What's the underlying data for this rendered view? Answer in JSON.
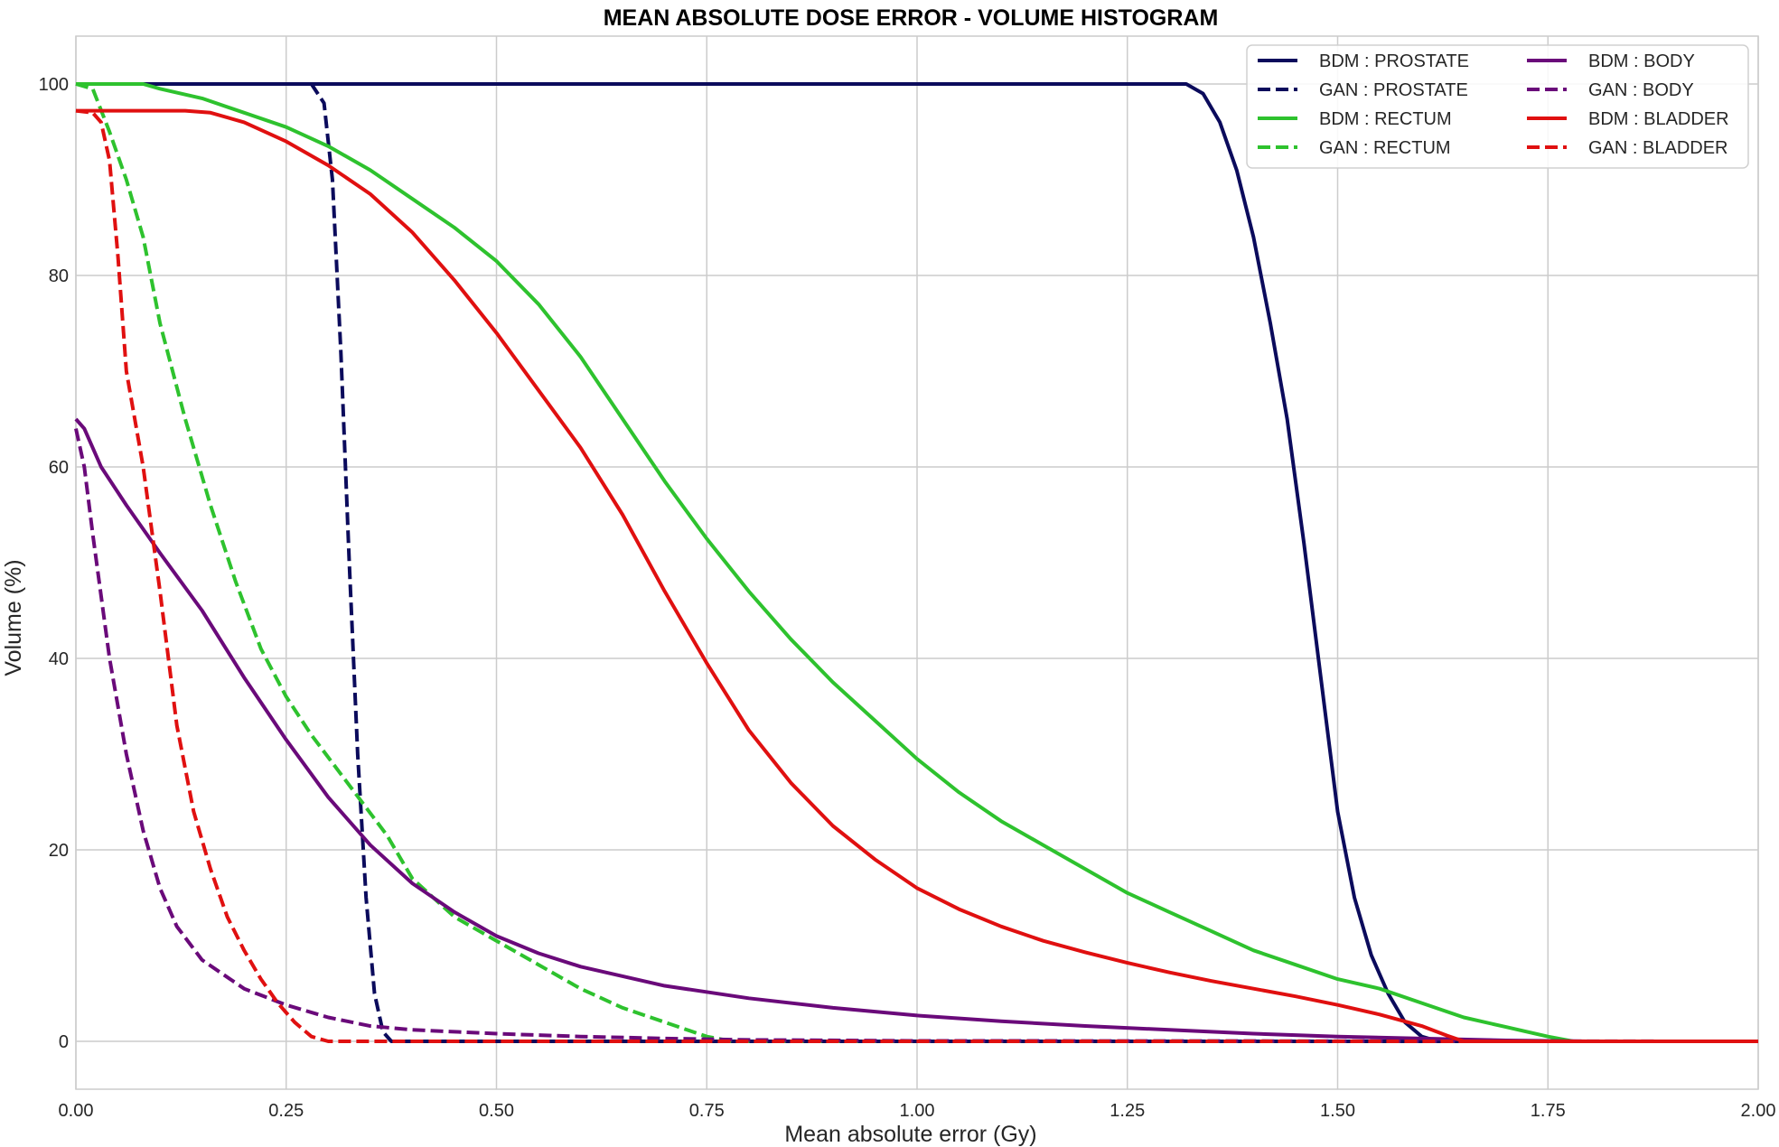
{
  "chart_data": {
    "type": "line",
    "title": "MEAN ABSOLUTE DOSE ERROR - VOLUME HISTOGRAM",
    "xlabel": "Mean absolute error (Gy)",
    "ylabel": "Volume (%)",
    "xlim": [
      0,
      2.0
    ],
    "ylim": [
      -5,
      105
    ],
    "x_ticks": [
      "0.00",
      "0.25",
      "0.50",
      "0.75",
      "1.00",
      "1.25",
      "1.50",
      "1.75",
      "2.00"
    ],
    "y_ticks": [
      "0",
      "20",
      "40",
      "60",
      "80",
      "100"
    ],
    "grid": true,
    "legend_position": "top-right",
    "legend_columns": 2,
    "series": [
      {
        "name": "BDM : PROSTATE",
        "color": "#0b0b5c",
        "dash": "solid",
        "points": [
          [
            0,
            100
          ],
          [
            1.32,
            100
          ],
          [
            1.34,
            99
          ],
          [
            1.36,
            96
          ],
          [
            1.38,
            91
          ],
          [
            1.4,
            84
          ],
          [
            1.42,
            75
          ],
          [
            1.44,
            65
          ],
          [
            1.46,
            52
          ],
          [
            1.48,
            38
          ],
          [
            1.5,
            24
          ],
          [
            1.52,
            15
          ],
          [
            1.54,
            9
          ],
          [
            1.56,
            5
          ],
          [
            1.58,
            2
          ],
          [
            1.6,
            0.5
          ],
          [
            1.62,
            0
          ],
          [
            2.0,
            0
          ]
        ]
      },
      {
        "name": "GAN : PROSTATE",
        "color": "#0b0b5c",
        "dash": "dashed",
        "points": [
          [
            0,
            100
          ],
          [
            0.28,
            100
          ],
          [
            0.295,
            98
          ],
          [
            0.305,
            90
          ],
          [
            0.315,
            72
          ],
          [
            0.325,
            50
          ],
          [
            0.335,
            30
          ],
          [
            0.345,
            15
          ],
          [
            0.355,
            5
          ],
          [
            0.365,
            1
          ],
          [
            0.375,
            0
          ],
          [
            2.0,
            0
          ]
        ]
      },
      {
        "name": "BDM : RECTUM",
        "color": "#2ec22e",
        "dash": "solid",
        "points": [
          [
            0,
            100
          ],
          [
            0.08,
            100
          ],
          [
            0.1,
            99.5
          ],
          [
            0.15,
            98.5
          ],
          [
            0.2,
            97
          ],
          [
            0.25,
            95.5
          ],
          [
            0.3,
            93.5
          ],
          [
            0.35,
            91
          ],
          [
            0.4,
            88
          ],
          [
            0.45,
            85
          ],
          [
            0.5,
            81.5
          ],
          [
            0.55,
            77
          ],
          [
            0.6,
            71.5
          ],
          [
            0.65,
            65
          ],
          [
            0.7,
            58.5
          ],
          [
            0.75,
            52.5
          ],
          [
            0.8,
            47
          ],
          [
            0.85,
            42
          ],
          [
            0.9,
            37.5
          ],
          [
            0.95,
            33.5
          ],
          [
            1.0,
            29.5
          ],
          [
            1.05,
            26
          ],
          [
            1.1,
            23
          ],
          [
            1.15,
            20.5
          ],
          [
            1.2,
            18
          ],
          [
            1.25,
            15.5
          ],
          [
            1.3,
            13.5
          ],
          [
            1.35,
            11.5
          ],
          [
            1.4,
            9.5
          ],
          [
            1.45,
            8
          ],
          [
            1.5,
            6.5
          ],
          [
            1.55,
            5.5
          ],
          [
            1.6,
            4
          ],
          [
            1.65,
            2.5
          ],
          [
            1.7,
            1.5
          ],
          [
            1.75,
            0.5
          ],
          [
            1.78,
            0
          ],
          [
            2.0,
            0
          ]
        ]
      },
      {
        "name": "GAN : RECTUM",
        "color": "#2ec22e",
        "dash": "dashed",
        "points": [
          [
            0,
            100
          ],
          [
            0.02,
            99.5
          ],
          [
            0.04,
            95
          ],
          [
            0.06,
            90
          ],
          [
            0.08,
            84
          ],
          [
            0.1,
            75
          ],
          [
            0.13,
            65
          ],
          [
            0.16,
            56
          ],
          [
            0.19,
            48
          ],
          [
            0.22,
            41
          ],
          [
            0.25,
            36
          ],
          [
            0.28,
            32
          ],
          [
            0.31,
            28.5
          ],
          [
            0.34,
            25
          ],
          [
            0.37,
            21.5
          ],
          [
            0.4,
            17
          ],
          [
            0.45,
            13
          ],
          [
            0.5,
            10.5
          ],
          [
            0.55,
            8
          ],
          [
            0.6,
            5.5
          ],
          [
            0.65,
            3.5
          ],
          [
            0.7,
            2
          ],
          [
            0.75,
            0.5
          ],
          [
            0.78,
            0
          ],
          [
            2.0,
            0
          ]
        ]
      },
      {
        "name": "BDM : BODY",
        "color": "#6a0a7a",
        "dash": "solid",
        "points": [
          [
            0,
            65
          ],
          [
            0.01,
            64
          ],
          [
            0.03,
            60
          ],
          [
            0.06,
            56
          ],
          [
            0.1,
            51
          ],
          [
            0.15,
            45
          ],
          [
            0.2,
            38
          ],
          [
            0.25,
            31.5
          ],
          [
            0.3,
            25.5
          ],
          [
            0.35,
            20.5
          ],
          [
            0.4,
            16.5
          ],
          [
            0.45,
            13.5
          ],
          [
            0.5,
            11
          ],
          [
            0.55,
            9.2
          ],
          [
            0.6,
            7.8
          ],
          [
            0.7,
            5.8
          ],
          [
            0.8,
            4.5
          ],
          [
            0.9,
            3.5
          ],
          [
            1.0,
            2.7
          ],
          [
            1.1,
            2.1
          ],
          [
            1.2,
            1.6
          ],
          [
            1.3,
            1.2
          ],
          [
            1.4,
            0.8
          ],
          [
            1.5,
            0.5
          ],
          [
            1.6,
            0.3
          ],
          [
            1.7,
            0.1
          ],
          [
            1.8,
            0
          ],
          [
            2.0,
            0
          ]
        ]
      },
      {
        "name": "GAN : BODY",
        "color": "#6a0a7a",
        "dash": "dashed",
        "points": [
          [
            0,
            64
          ],
          [
            0.01,
            60
          ],
          [
            0.02,
            53
          ],
          [
            0.04,
            40
          ],
          [
            0.06,
            30
          ],
          [
            0.08,
            22
          ],
          [
            0.1,
            16
          ],
          [
            0.12,
            12
          ],
          [
            0.15,
            8.5
          ],
          [
            0.2,
            5.5
          ],
          [
            0.25,
            3.8
          ],
          [
            0.3,
            2.5
          ],
          [
            0.35,
            1.6
          ],
          [
            0.4,
            1.2
          ],
          [
            0.5,
            0.8
          ],
          [
            0.6,
            0.5
          ],
          [
            0.7,
            0.3
          ],
          [
            0.8,
            0.15
          ],
          [
            1.0,
            0.05
          ],
          [
            2.0,
            0
          ]
        ]
      },
      {
        "name": "BDM : BLADDER",
        "color": "#e01010",
        "dash": "solid",
        "points": [
          [
            0,
            97.2
          ],
          [
            0.13,
            97.2
          ],
          [
            0.16,
            97
          ],
          [
            0.2,
            96
          ],
          [
            0.25,
            94
          ],
          [
            0.3,
            91.5
          ],
          [
            0.35,
            88.5
          ],
          [
            0.4,
            84.5
          ],
          [
            0.45,
            79.5
          ],
          [
            0.5,
            74
          ],
          [
            0.55,
            68
          ],
          [
            0.6,
            62
          ],
          [
            0.65,
            55
          ],
          [
            0.7,
            47
          ],
          [
            0.75,
            39.5
          ],
          [
            0.8,
            32.5
          ],
          [
            0.85,
            27
          ],
          [
            0.9,
            22.5
          ],
          [
            0.95,
            19
          ],
          [
            1.0,
            16
          ],
          [
            1.05,
            13.8
          ],
          [
            1.1,
            12
          ],
          [
            1.15,
            10.5
          ],
          [
            1.2,
            9.3
          ],
          [
            1.25,
            8.2
          ],
          [
            1.3,
            7.2
          ],
          [
            1.35,
            6.3
          ],
          [
            1.4,
            5.5
          ],
          [
            1.45,
            4.7
          ],
          [
            1.5,
            3.8
          ],
          [
            1.55,
            2.8
          ],
          [
            1.6,
            1.6
          ],
          [
            1.63,
            0.6
          ],
          [
            1.65,
            0
          ],
          [
            2.0,
            0
          ]
        ]
      },
      {
        "name": "GAN : BLADDER",
        "color": "#e01010",
        "dash": "dashed",
        "points": [
          [
            0,
            97.2
          ],
          [
            0.02,
            97
          ],
          [
            0.03,
            96
          ],
          [
            0.04,
            92
          ],
          [
            0.05,
            82
          ],
          [
            0.06,
            70
          ],
          [
            0.08,
            60
          ],
          [
            0.1,
            47
          ],
          [
            0.12,
            33
          ],
          [
            0.14,
            24
          ],
          [
            0.16,
            18
          ],
          [
            0.18,
            13
          ],
          [
            0.2,
            9.5
          ],
          [
            0.22,
            6.5
          ],
          [
            0.24,
            4
          ],
          [
            0.26,
            2
          ],
          [
            0.28,
            0.5
          ],
          [
            0.3,
            0
          ],
          [
            2.0,
            0
          ]
        ]
      }
    ]
  }
}
